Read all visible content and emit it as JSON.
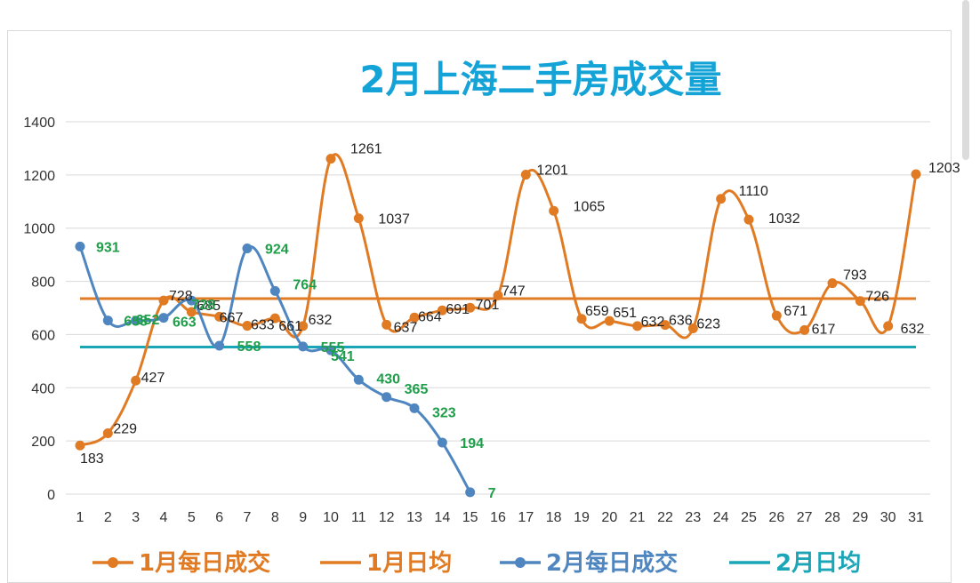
{
  "chart_data": {
    "type": "line",
    "title": "2月上海二手房成交量",
    "xlabel": "",
    "ylabel": "",
    "ylim": [
      0,
      1400
    ],
    "yticks": [
      0,
      200,
      400,
      600,
      800,
      1000,
      1200,
      1400
    ],
    "x": [
      1,
      2,
      3,
      4,
      5,
      6,
      7,
      8,
      9,
      10,
      11,
      12,
      13,
      14,
      15,
      16,
      17,
      18,
      19,
      20,
      21,
      22,
      23,
      24,
      25,
      26,
      27,
      28,
      29,
      30,
      31
    ],
    "grid": true,
    "legend_position": "bottom",
    "series": [
      {
        "name": "1月每日成交",
        "color": "#e07b24",
        "marker": "circle",
        "values": [
          183,
          229,
          427,
          728,
          685,
          667,
          633,
          661,
          632,
          1261,
          1037,
          637,
          664,
          691,
          701,
          747,
          1201,
          1065,
          659,
          651,
          632,
          636,
          623,
          1110,
          1032,
          671,
          617,
          793,
          726,
          632,
          1203
        ],
        "labels": [
          "183",
          "229",
          "427",
          "728",
          "685",
          "667",
          "633",
          "661",
          "632",
          "1261",
          "1037",
          "637",
          "664",
          "691",
          "701",
          "747",
          "1201",
          "1065",
          "659",
          "651",
          "632",
          "636",
          "623",
          "1110",
          "1032",
          "671",
          "617",
          "793",
          "726",
          "632",
          "1203"
        ]
      },
      {
        "name": "1月日均",
        "color": "#e07b24",
        "marker": "none",
        "constant": 735
      },
      {
        "name": "2月每日成交",
        "color": "#4f86c0",
        "marker": "circle",
        "x": [
          1,
          2,
          3,
          4,
          5,
          6,
          7,
          8,
          9,
          10,
          11,
          12,
          13,
          14,
          15
        ],
        "values": [
          931,
          653,
          652,
          663,
          728,
          558,
          924,
          764,
          555,
          541,
          430,
          365,
          323,
          194,
          7
        ],
        "labels": [
          "931",
          "653",
          "652",
          "663",
          "728",
          "558",
          "924",
          "764",
          "555",
          "541",
          "430",
          "365",
          "323",
          "194",
          "7"
        ]
      },
      {
        "name": "2月日均",
        "color": "#1aa6b7",
        "marker": "none",
        "constant": 553
      }
    ]
  },
  "legend": {
    "items": [
      "1月每日成交",
      "1月日均",
      "2月每日成交",
      "2月日均"
    ]
  }
}
